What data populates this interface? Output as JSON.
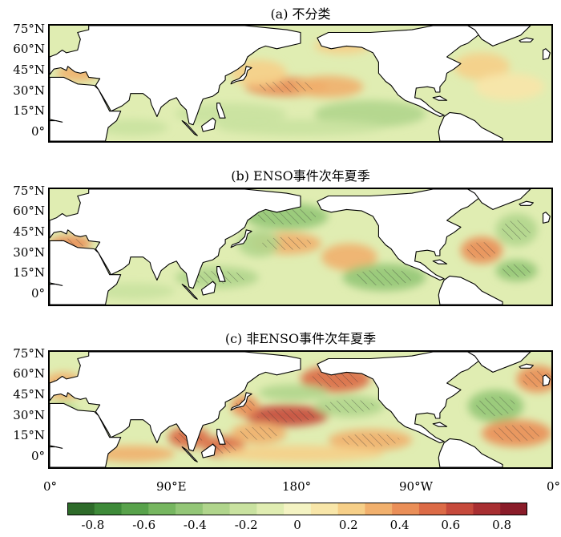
{
  "chart_data": [
    {
      "type": "heatmap",
      "title": "(a) 不分类",
      "y_ticks": [
        "75°N",
        "60°N",
        "45°N",
        "30°N",
        "15°N",
        "0°"
      ],
      "xlim": [
        0,
        360
      ],
      "ylim": [
        -10,
        75
      ],
      "features": [
        {
          "lon": 170,
          "lat": 30,
          "value": 0.45,
          "rx": 30,
          "ry": 7
        },
        {
          "lon": 200,
          "lat": 30,
          "value": 0.3,
          "rx": 25,
          "ry": 8
        },
        {
          "lon": 150,
          "lat": 40,
          "value": 0.2,
          "rx": 20,
          "ry": 10
        },
        {
          "lon": 130,
          "lat": 10,
          "value": -0.25,
          "rx": 40,
          "ry": 8
        },
        {
          "lon": 230,
          "lat": 10,
          "value": -0.3,
          "rx": 40,
          "ry": 10
        },
        {
          "lon": 180,
          "lat": 0,
          "value": -0.2,
          "rx": 60,
          "ry": 6
        },
        {
          "lon": 310,
          "lat": 45,
          "value": 0.2,
          "rx": 20,
          "ry": 10
        },
        {
          "lon": 330,
          "lat": 30,
          "value": 0.15,
          "rx": 25,
          "ry": 10
        },
        {
          "lon": 60,
          "lat": 0,
          "value": -0.2,
          "rx": 25,
          "ry": 6
        },
        {
          "lon": 20,
          "lat": 40,
          "value": 0.3,
          "rx": 15,
          "ry": 6
        },
        {
          "lon": 210,
          "lat": 60,
          "value": 0.25,
          "rx": 20,
          "ry": 6
        }
      ]
    },
    {
      "type": "heatmap",
      "title": "(b) ENSO事件次年夏季",
      "y_ticks": [
        "75°N",
        "60°N",
        "45°N",
        "30°N",
        "15°N",
        "0°"
      ],
      "xlim": [
        0,
        360
      ],
      "ylim": [
        -10,
        75
      ],
      "features": [
        {
          "lon": 170,
          "lat": 35,
          "value": 0.35,
          "rx": 25,
          "ry": 8
        },
        {
          "lon": 215,
          "lat": 25,
          "value": 0.3,
          "rx": 20,
          "ry": 10
        },
        {
          "lon": 170,
          "lat": 55,
          "value": -0.4,
          "rx": 30,
          "ry": 10
        },
        {
          "lon": 150,
          "lat": 35,
          "value": -0.3,
          "rx": 15,
          "ry": 10
        },
        {
          "lon": 240,
          "lat": 10,
          "value": -0.45,
          "rx": 30,
          "ry": 10
        },
        {
          "lon": 120,
          "lat": 10,
          "value": -0.35,
          "rx": 30,
          "ry": 8
        },
        {
          "lon": 310,
          "lat": 30,
          "value": 0.4,
          "rx": 15,
          "ry": 10
        },
        {
          "lon": 335,
          "lat": 45,
          "value": -0.35,
          "rx": 15,
          "ry": 12
        },
        {
          "lon": 335,
          "lat": 15,
          "value": -0.4,
          "rx": 15,
          "ry": 8
        },
        {
          "lon": 15,
          "lat": 35,
          "value": 0.45,
          "rx": 15,
          "ry": 6
        },
        {
          "lon": 60,
          "lat": 0,
          "value": -0.25,
          "rx": 30,
          "ry": 6
        }
      ]
    },
    {
      "type": "heatmap",
      "title": "(c) 非ENSO事件次年夏季",
      "y_ticks": [
        "75°N",
        "60°N",
        "45°N",
        "30°N",
        "15°N",
        "0°"
      ],
      "x_ticks": [
        "0°",
        "90°E",
        "180°",
        "90°W",
        "0°"
      ],
      "xlim": [
        0,
        360
      ],
      "ylim": [
        -10,
        75
      ],
      "features": [
        {
          "lon": 170,
          "lat": 28,
          "value": 0.6,
          "rx": 30,
          "ry": 8
        },
        {
          "lon": 205,
          "lat": 55,
          "value": 0.55,
          "rx": 25,
          "ry": 10
        },
        {
          "lon": 215,
          "lat": 35,
          "value": -0.35,
          "rx": 25,
          "ry": 8
        },
        {
          "lon": 175,
          "lat": 45,
          "value": -0.3,
          "rx": 25,
          "ry": 6
        },
        {
          "lon": 100,
          "lat": 12,
          "value": 0.55,
          "rx": 15,
          "ry": 8
        },
        {
          "lon": 125,
          "lat": 5,
          "value": 0.5,
          "rx": 15,
          "ry": 8
        },
        {
          "lon": 150,
          "lat": 15,
          "value": 0.35,
          "rx": 20,
          "ry": 8
        },
        {
          "lon": 230,
          "lat": 10,
          "value": 0.35,
          "rx": 30,
          "ry": 8
        },
        {
          "lon": 180,
          "lat": 0,
          "value": 0.2,
          "rx": 60,
          "ry": 6
        },
        {
          "lon": 320,
          "lat": 35,
          "value": -0.45,
          "rx": 20,
          "ry": 12
        },
        {
          "lon": 335,
          "lat": 15,
          "value": 0.45,
          "rx": 25,
          "ry": 10
        },
        {
          "lon": 350,
          "lat": 55,
          "value": 0.4,
          "rx": 15,
          "ry": 10
        },
        {
          "lon": 10,
          "lat": 50,
          "value": 0.35,
          "rx": 15,
          "ry": 10
        },
        {
          "lon": 10,
          "lat": 30,
          "value": -0.3,
          "rx": 10,
          "ry": 8
        },
        {
          "lon": 60,
          "lat": 0,
          "value": 0.3,
          "rx": 30,
          "ry": 6
        },
        {
          "lon": 140,
          "lat": 35,
          "value": 0.4,
          "rx": 10,
          "ry": 8
        }
      ]
    }
  ],
  "colorbar": {
    "labels": [
      "-0.8",
      "-0.6",
      "-0.4",
      "-0.2",
      "0",
      "0.2",
      "0.4",
      "0.6",
      "0.8"
    ],
    "range": [
      -0.9,
      0.9
    ],
    "colors": [
      "#2e6b2a",
      "#3e8a39",
      "#58a24b",
      "#76b660",
      "#93c677",
      "#b0d58c",
      "#c9e2a0",
      "#e0edb2",
      "#f4f3c3",
      "#f8e6a9",
      "#f6cf88",
      "#f1b06d",
      "#ea8f58",
      "#dc6b47",
      "#c64a3c",
      "#a82f32",
      "#8a1c29"
    ]
  }
}
